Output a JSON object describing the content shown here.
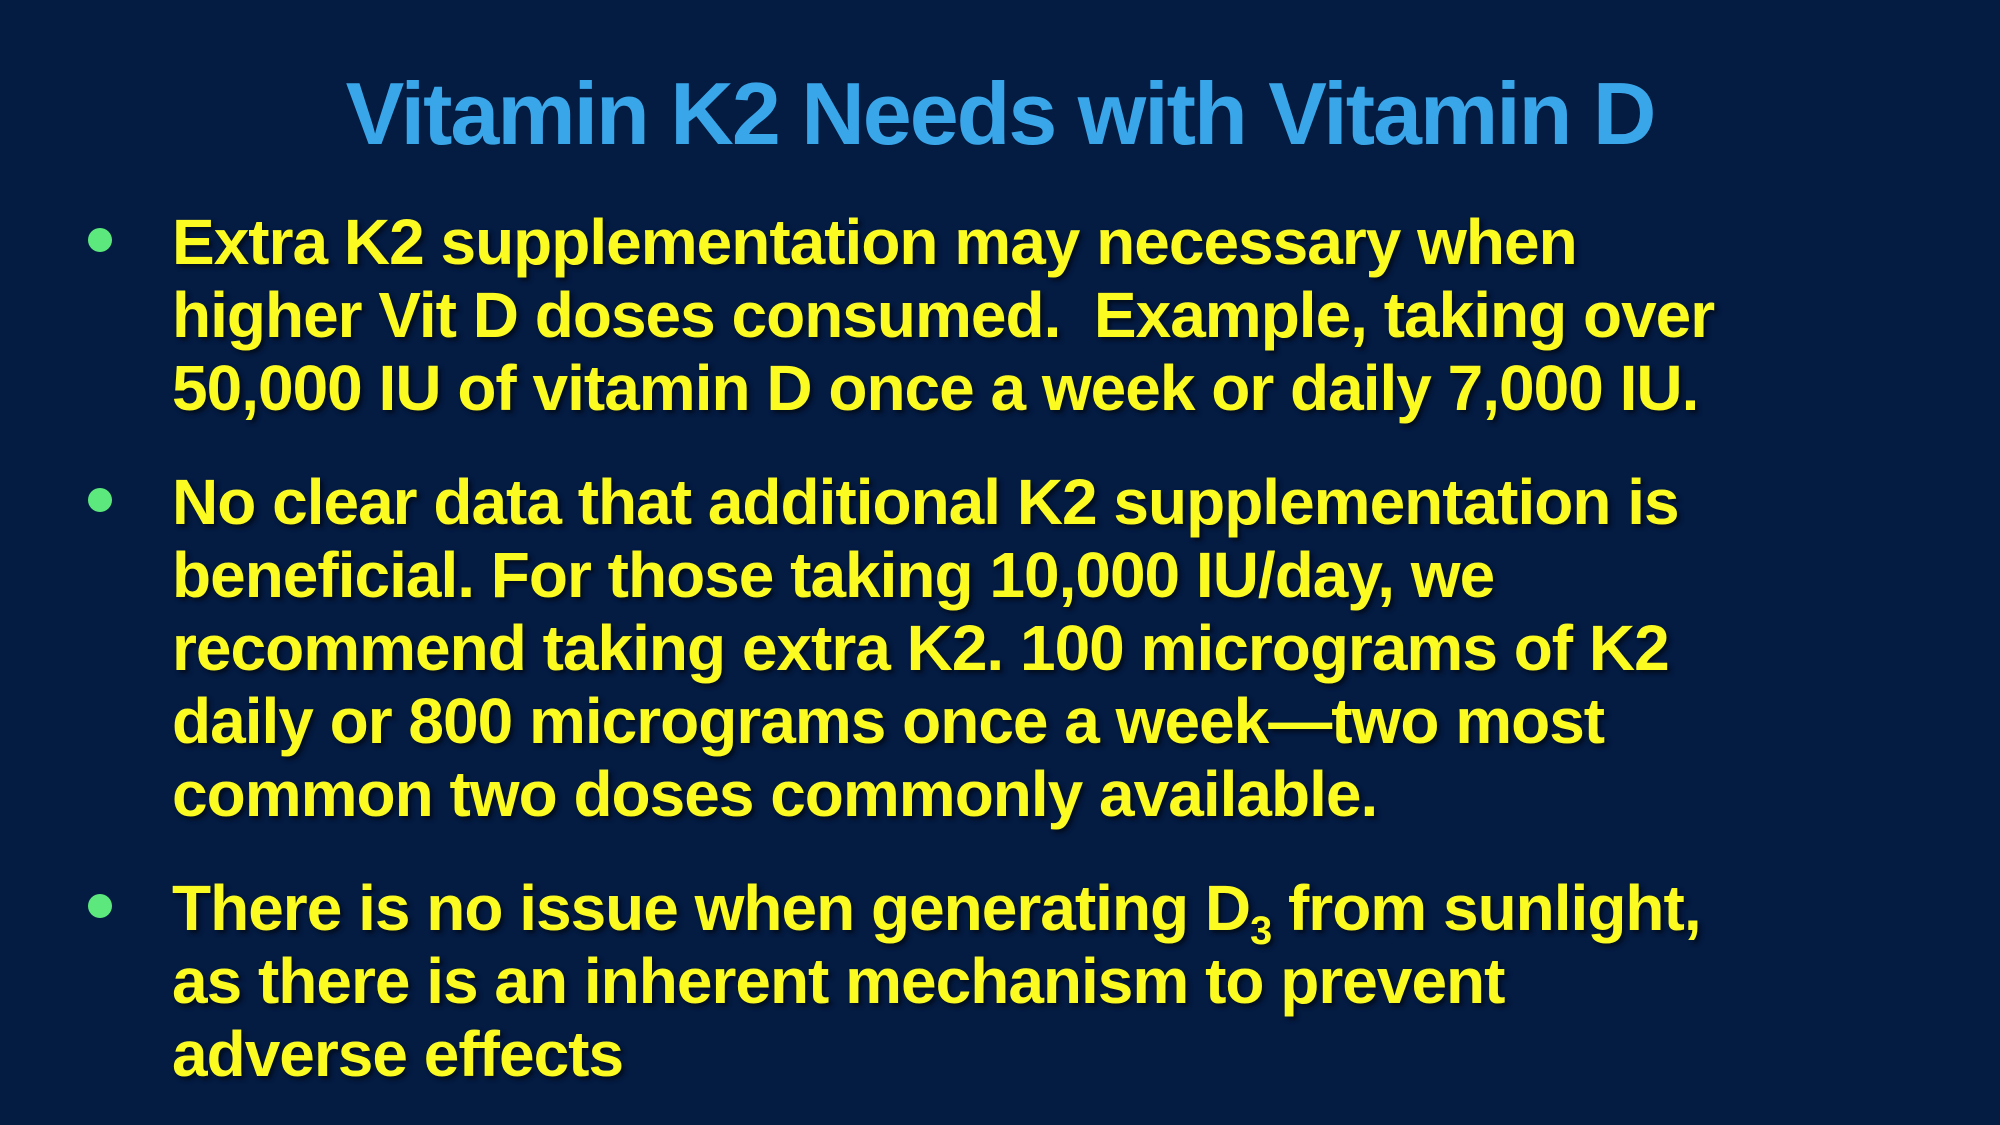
{
  "slide": {
    "title": "Vitamin K2 Needs with Vitamin D",
    "colors": {
      "background": "#041b42",
      "title_text": "#3aa6ea",
      "body_text": "#fbfb22",
      "bullet_marker": "#5ce87c"
    },
    "bullets": [
      {
        "segments": [
          {
            "text": "Extra K2 supplementation may necessary when\nhigher Vit D doses consumed.  Example, taking over\n50,000 IU of vitamin D once a week or daily 7,000 IU."
          }
        ]
      },
      {
        "segments": [
          {
            "text": "No clear data that additional K2 supplementation is\nbeneficial. For those taking 10,000 IU/day, we\nrecommend taking extra K2. 100 micrograms of K2\ndaily or 800 micrograms once a week—two most\ncommon two doses commonly available."
          }
        ]
      },
      {
        "segments": [
          {
            "text": "There is no issue when generating D"
          },
          {
            "text": "3",
            "sub": true
          },
          {
            "text": " from sunlight,\nas there is an inherent mechanism to prevent\nadverse effects"
          }
        ]
      }
    ]
  }
}
